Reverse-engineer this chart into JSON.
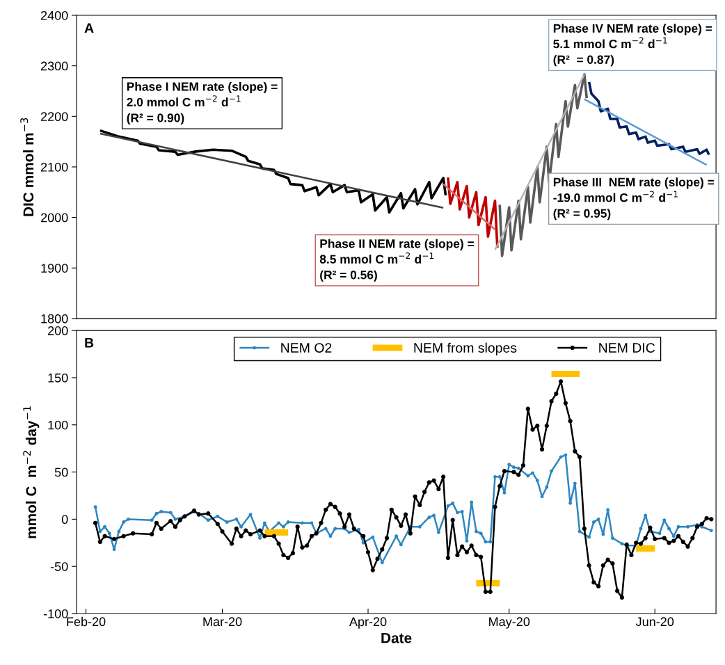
{
  "chart_data": [
    {
      "type": "line",
      "ylabel": "DIC mmol m$^{−3}$",
      "xlim": [
        "2020-01-30",
        "2020-06-14"
      ],
      "ylim": [
        1800,
        2400
      ],
      "yticks": [
        1800,
        1900,
        2000,
        2100,
        2200,
        2300,
        2400
      ],
      "tick_labels": "y",
      "annotations": [
        "A",
        "Phase I NEM rate (slope) =\n2.0 mmol C m$^{−2}$ d$^{−1}$\n(R² = 0.90)",
        "Phase II NEM rate (slope) =\n8.5 mmol C m$^{−2}$ d$^{−1}$\n(R² = 0.56)",
        "Phase III  NEM rate (slope) =\n-19.0 mmol C m$^{−2}$ d$^{−1}$\n(R² = 0.95)",
        "Phase IV NEM rate (slope) =\n5.1 mmol C m$^{−2}$ d$^{−1}$\n(R²  = 0.87)"
      ],
      "series": [
        {
          "color": "#000000",
          "x": [
            "2020-02-04",
            "2020-02-08",
            "2020-02-12",
            "2020-02-12T12:00",
            "2020-02-16",
            "2020-02-16T12:00",
            "2020-02-20",
            "2020-02-20T12:00",
            "2020-02-24",
            "2020-02-28",
            "2020-03-03",
            "2020-03-06",
            "2020-03-06T12:00",
            "2020-03-09",
            "2020-03-09T12:00",
            "2020-03-12",
            "2020-03-12T12:00",
            "2020-03-15",
            "2020-03-15T12:00",
            "2020-03-18",
            "2020-03-18T12:00",
            "2020-03-21",
            "2020-03-21T12:00",
            "2020-03-24",
            "2020-03-24T12:00",
            "2020-03-27",
            "2020-03-27T12:00",
            "2020-03-30",
            "2020-03-30T12:00",
            "2020-04-02",
            "2020-04-02T12:00",
            "2020-04-05",
            "2020-04-05T12:00",
            "2020-04-08",
            "2020-04-08T12:00",
            "2020-04-11",
            "2020-04-11T12:00",
            "2020-04-14",
            "2020-04-14T12:00",
            "2020-04-17",
            "2020-04-17T12:00"
          ],
          "values": [
            2172,
            2160,
            2152,
            2146,
            2140,
            2133,
            2130,
            2124,
            2130,
            2134,
            2132,
            2120,
            2112,
            2105,
            2097,
            2094,
            2086,
            2078,
            2066,
            2064,
            2052,
            2060,
            2044,
            2066,
            2050,
            2064,
            2050,
            2054,
            2030,
            2046,
            2014,
            2040,
            2010,
            2048,
            2018,
            2056,
            2026,
            2070,
            2038,
            2078,
            2044
          ]
        },
        {
          "color": "#c00000",
          "x": [
            "2020-04-18",
            "2020-04-18T12:00",
            "2020-04-20",
            "2020-04-20T12:00",
            "2020-04-22",
            "2020-04-22T12:00",
            "2020-04-24",
            "2020-04-24T12:00",
            "2020-04-26",
            "2020-04-26T12:00",
            "2020-04-28",
            "2020-04-28T12:00"
          ],
          "values": [
            2079,
            2027,
            2070,
            2016,
            2062,
            2000,
            2050,
            1985,
            2040,
            1962,
            2033,
            1940
          ]
        },
        {
          "color": "#595959",
          "x": [
            "2020-04-29",
            "2020-04-29T12:00",
            "2020-05-01",
            "2020-05-01T12:00",
            "2020-05-03",
            "2020-05-03T12:00",
            "2020-05-05",
            "2020-05-05T12:00",
            "2020-05-07",
            "2020-05-07T12:00",
            "2020-05-09",
            "2020-05-09T12:00",
            "2020-05-11",
            "2020-05-11T12:00",
            "2020-05-13",
            "2020-05-13T12:00",
            "2020-05-15",
            "2020-05-15T12:00",
            "2020-05-17",
            "2020-05-17T12:00"
          ],
          "values": [
            2025,
            1924,
            2020,
            1935,
            2033,
            1957,
            2060,
            1990,
            2100,
            2030,
            2140,
            2070,
            2185,
            2120,
            2230,
            2180,
            2262,
            2216,
            2283,
            2236
          ]
        },
        {
          "color": "#002060",
          "x": [
            "2020-05-18",
            "2020-05-18T12:00",
            "2020-05-20",
            "2020-05-20T12:00",
            "2020-05-22",
            "2020-05-22T12:00",
            "2020-05-24",
            "2020-05-24T12:00",
            "2020-05-26",
            "2020-05-26T12:00",
            "2020-05-28",
            "2020-05-28T12:00",
            "2020-05-30",
            "2020-05-30T12:00",
            "2020-06-01",
            "2020-06-01T12:00",
            "2020-06-04",
            "2020-06-04T12:00",
            "2020-06-07",
            "2020-06-07T12:00",
            "2020-06-10",
            "2020-06-10T12:00",
            "2020-06-12",
            "2020-06-12T12:00"
          ],
          "values": [
            2268,
            2245,
            2230,
            2210,
            2215,
            2195,
            2195,
            2178,
            2180,
            2165,
            2168,
            2155,
            2160,
            2148,
            2152,
            2142,
            2145,
            2135,
            2140,
            2130,
            2135,
            2126,
            2134,
            2124
          ]
        },
        {
          "color": "#404040",
          "x": [
            "2020-02-04",
            "2020-04-17"
          ],
          "values": [
            2166,
            2019
          ]
        },
        {
          "color": "#e06666",
          "x": [
            "2020-04-17",
            "2020-04-28"
          ],
          "values": [
            2066,
            1976
          ]
        },
        {
          "color": "#b4b4b4",
          "x": [
            "2020-04-28",
            "2020-05-17"
          ],
          "values": [
            1936,
            2283
          ]
        },
        {
          "color": "#5b9bd5",
          "x": [
            "2020-05-17",
            "2020-06-12"
          ],
          "values": [
            2234,
            2104
          ]
        }
      ]
    },
    {
      "type": "line",
      "xlabel": "Date",
      "ylabel": "mmol C  m$^{−2}$ day$^{−1}$",
      "xlim": [
        "2020-01-30",
        "2020-06-14"
      ],
      "xticks": [
        {
          "value": "2020-02-01",
          "label": "Feb-20"
        },
        {
          "value": "2020-03-01",
          "label": "Mar-20"
        },
        {
          "value": "2020-04-01",
          "label": "Apr-20"
        },
        {
          "value": "2020-05-01",
          "label": "May-20"
        },
        {
          "value": "2020-06-01",
          "label": "Jun-20"
        }
      ],
      "ylim": [
        -100,
        200
      ],
      "yticks": [
        -100,
        -50,
        0,
        50,
        100,
        150,
        200
      ],
      "legend": "top",
      "annotations": [
        "B"
      ],
      "series": [
        {
          "name": "NEM O2",
          "color": "#2e86c1",
          "marker": "circle",
          "x": [
            "2020-02-03",
            "2020-02-04",
            "2020-02-05",
            "2020-02-06",
            "2020-02-07",
            "2020-02-08",
            "2020-02-09",
            "2020-02-10",
            "2020-02-15",
            "2020-02-16",
            "2020-02-17",
            "2020-02-19",
            "2020-02-20",
            "2020-02-22",
            "2020-02-24",
            "2020-02-25",
            "2020-02-27",
            "2020-02-29",
            "2020-03-02",
            "2020-03-04",
            "2020-03-05",
            "2020-03-07",
            "2020-03-09",
            "2020-03-10",
            "2020-03-11",
            "2020-03-13",
            "2020-03-14",
            "2020-03-15",
            "2020-03-18",
            "2020-03-20",
            "2020-03-21",
            "2020-03-23",
            "2020-03-24",
            "2020-03-25",
            "2020-03-27",
            "2020-03-28",
            "2020-03-30",
            "2020-03-31",
            "2020-04-02",
            "2020-04-04",
            "2020-04-07",
            "2020-04-08",
            "2020-04-10",
            "2020-04-12",
            "2020-04-14",
            "2020-04-15",
            "2020-04-16",
            "2020-04-18",
            "2020-04-19",
            "2020-04-20",
            "2020-04-21",
            "2020-04-22",
            "2020-04-23",
            "2020-04-24",
            "2020-04-25",
            "2020-04-26",
            "2020-04-27",
            "2020-04-28",
            "2020-04-29",
            "2020-04-30",
            "2020-05-01",
            "2020-05-02",
            "2020-05-03",
            "2020-05-05",
            "2020-05-06",
            "2020-05-07",
            "2020-05-08",
            "2020-05-09",
            "2020-05-10",
            "2020-05-12",
            "2020-05-13",
            "2020-05-14",
            "2020-05-15",
            "2020-05-16",
            "2020-05-18",
            "2020-05-19",
            "2020-05-20",
            "2020-05-21",
            "2020-05-22",
            "2020-05-23",
            "2020-05-25",
            "2020-05-26",
            "2020-05-28",
            "2020-05-29",
            "2020-05-30",
            "2020-05-31",
            "2020-06-02",
            "2020-06-03",
            "2020-06-04",
            "2020-06-05",
            "2020-06-06",
            "2020-06-08",
            "2020-06-10",
            "2020-06-11",
            "2020-06-13"
          ],
          "values": [
            13,
            -13,
            -8,
            -15,
            -32,
            -13,
            -3,
            0,
            -1,
            6,
            8,
            7,
            0,
            3,
            8,
            6,
            -1,
            3,
            -3,
            0,
            -8,
            5,
            -20,
            -4,
            -13,
            -4,
            -8,
            -3,
            -4,
            -4,
            -15,
            -10,
            -18,
            -10,
            -10,
            -14,
            -11,
            -25,
            -19,
            -46,
            -18,
            -27,
            -8,
            -8,
            2,
            4,
            -14,
            14,
            17,
            7,
            8,
            -23,
            18,
            -13,
            -15,
            -24,
            -24,
            45,
            45,
            28,
            58,
            55,
            54,
            46,
            49,
            41,
            24,
            34,
            51,
            66,
            68,
            17,
            38,
            -13,
            -19,
            -3,
            0,
            -16,
            10,
            -20,
            -26,
            -28,
            -28,
            -10,
            4,
            -13,
            -15,
            -1,
            -10,
            -18,
            -8,
            -8,
            -6,
            -8,
            -12
          ]
        },
        {
          "name": "NEM from slopes",
          "color": "#ffc000",
          "marker": "none",
          "x": [
            "2020-03-10",
            "2020-03-15",
            "2020-03-20",
            "2020-04-24",
            "2020-04-29",
            "2020-05-05",
            "2020-05-10",
            "2020-05-16",
            "2020-05-22",
            "2020-05-28",
            "2020-06-01"
          ],
          "values": [
            -14,
            -14,
            null,
            -68,
            -68,
            null,
            154,
            154,
            null,
            -31,
            -31
          ]
        },
        {
          "name": "NEM DIC",
          "color": "#000000",
          "marker": "circle",
          "x": [
            "2020-02-03",
            "2020-02-04",
            "2020-02-05",
            "2020-02-07",
            "2020-02-09",
            "2020-02-11",
            "2020-02-15",
            "2020-02-16",
            "2020-02-17",
            "2020-02-19",
            "2020-02-20",
            "2020-02-21",
            "2020-02-22",
            "2020-02-24",
            "2020-02-25",
            "2020-02-27",
            "2020-02-29",
            "2020-03-01",
            "2020-03-03",
            "2020-03-04",
            "2020-03-05",
            "2020-03-06",
            "2020-03-07",
            "2020-03-09",
            "2020-03-10",
            "2020-03-12",
            "2020-03-13",
            "2020-03-14",
            "2020-03-15",
            "2020-03-16",
            "2020-03-17",
            "2020-03-18",
            "2020-03-19",
            "2020-03-20",
            "2020-03-21",
            "2020-03-22",
            "2020-03-23",
            "2020-03-24",
            "2020-03-25",
            "2020-03-26",
            "2020-03-27",
            "2020-03-28",
            "2020-03-29",
            "2020-03-31",
            "2020-04-01",
            "2020-04-02",
            "2020-04-03",
            "2020-04-04",
            "2020-04-05",
            "2020-04-06",
            "2020-04-07",
            "2020-04-08",
            "2020-04-09",
            "2020-04-10",
            "2020-04-11",
            "2020-04-12",
            "2020-04-13",
            "2020-04-14",
            "2020-04-15",
            "2020-04-16",
            "2020-04-17",
            "2020-04-18",
            "2020-04-19",
            "2020-04-20",
            "2020-04-21",
            "2020-04-22",
            "2020-04-23",
            "2020-04-24",
            "2020-04-25",
            "2020-04-26",
            "2020-04-27",
            "2020-04-28",
            "2020-04-29",
            "2020-04-30",
            "2020-05-02",
            "2020-05-03",
            "2020-05-04",
            "2020-05-05",
            "2020-05-06",
            "2020-05-07",
            "2020-05-08",
            "2020-05-09",
            "2020-05-10",
            "2020-05-11",
            "2020-05-12",
            "2020-05-13",
            "2020-05-14",
            "2020-05-15",
            "2020-05-16",
            "2020-05-17",
            "2020-05-18",
            "2020-05-19",
            "2020-05-20",
            "2020-05-21",
            "2020-05-22",
            "2020-05-23",
            "2020-05-24",
            "2020-05-25",
            "2020-05-26",
            "2020-05-27",
            "2020-05-28",
            "2020-05-29",
            "2020-05-30",
            "2020-05-31",
            "2020-06-01",
            "2020-06-03",
            "2020-06-04",
            "2020-06-05",
            "2020-06-06",
            "2020-06-07",
            "2020-06-08",
            "2020-06-09",
            "2020-06-10",
            "2020-06-11",
            "2020-06-12",
            "2020-06-13"
          ],
          "values": [
            -4,
            -24,
            -18,
            -21,
            -18,
            -15,
            -16,
            -4,
            -10,
            -2,
            -8,
            -1,
            3,
            9,
            5,
            6,
            -5,
            -13,
            -26,
            -10,
            -18,
            -12,
            -16,
            -12,
            -18,
            -18,
            -26,
            -38,
            -41,
            -36,
            -8,
            -30,
            -28,
            -18,
            -15,
            -4,
            10,
            16,
            13,
            6,
            -8,
            5,
            -10,
            -18,
            -35,
            -54,
            -42,
            -32,
            -20,
            10,
            2,
            -7,
            5,
            -15,
            24,
            15,
            29,
            39,
            41,
            32,
            45,
            -41,
            -1,
            -38,
            -29,
            -35,
            -28,
            -38,
            -40,
            -77,
            -77,
            13,
            35,
            51,
            50,
            47,
            57,
            117,
            95,
            99,
            74,
            99,
            125,
            133,
            146,
            123,
            104,
            72,
            66,
            -10,
            -49,
            -67,
            -71,
            -49,
            -43,
            -47,
            -76,
            -83,
            -27,
            -38,
            -25,
            -26,
            -20,
            -9,
            -21,
            -20,
            -25,
            -23,
            -18,
            -24,
            -29,
            -20,
            -8,
            -5,
            1,
            0
          ]
        }
      ]
    }
  ]
}
